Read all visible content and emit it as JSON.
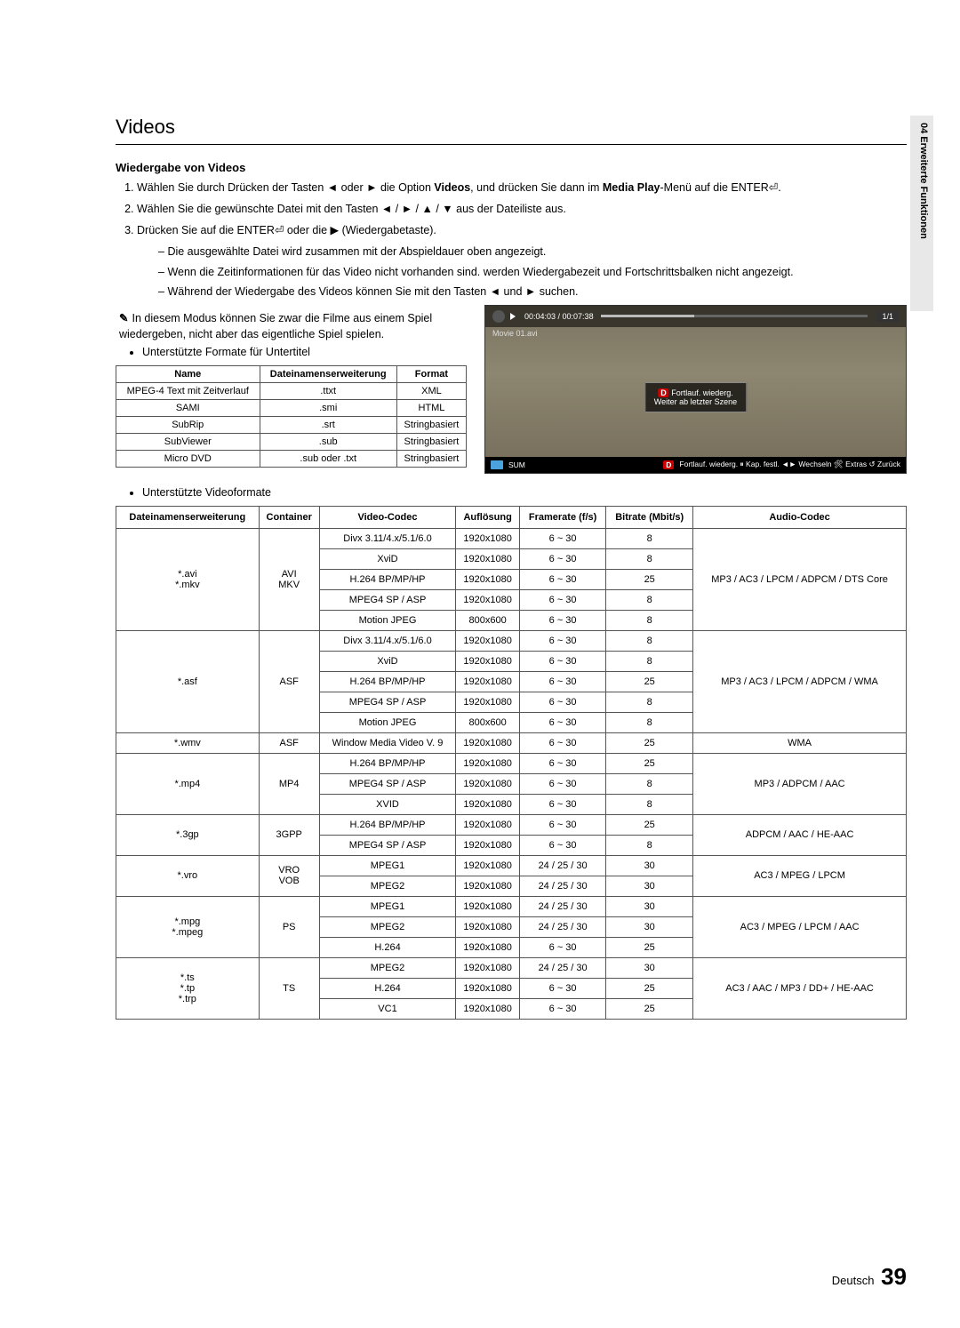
{
  "side_tab": "04  Erweiterte Funktionen",
  "section_title": "Videos",
  "subheading": "Wiedergabe von Videos",
  "steps": {
    "s1_pre": "Wählen Sie durch Drücken der Tasten ◄ oder ► die Option ",
    "s1_bold1": "Videos",
    "s1_mid": ", und drücken Sie dann im ",
    "s1_bold2": "Media Play",
    "s1_post": "-Menü auf die ENTER⏎.",
    "s2": "Wählen Sie die gewünschte Datei mit den Tasten ◄ / ► / ▲ / ▼ aus der Dateiliste aus.",
    "s3": "Drücken Sie auf die ENTER⏎ oder die ▶ (Wiedergabetaste).",
    "s3_sub1": "Die ausgewählte Datei wird zusammen mit der Abspieldauer oben angezeigt.",
    "s3_sub2": "Wenn die Zeitinformationen für das Video nicht vorhanden sind. werden Wiedergabezeit und Fortschrittsbalken nicht angezeigt.",
    "s3_sub3": "Während der Wiedergabe des Videos können Sie mit den Tasten ◄ und ► suchen."
  },
  "note": "In diesem Modus können Sie zwar die Filme aus einem Spiel wiedergeben, nicht aber das eigentliche Spiel spielen.",
  "bullet_subtitle": "Unterstützte Formate für Untertitel",
  "subtitle_table": {
    "headers": [
      "Name",
      "Dateinamenserweiterung",
      "Format"
    ],
    "rows": [
      [
        "MPEG-4 Text mit Zeitverlauf",
        ".ttxt",
        "XML"
      ],
      [
        "SAMI",
        ".smi",
        "HTML"
      ],
      [
        "SubRip",
        ".srt",
        "Stringbasiert"
      ],
      [
        "SubViewer",
        ".sub",
        "Stringbasiert"
      ],
      [
        "Micro DVD",
        ".sub oder .txt",
        "Stringbasiert"
      ]
    ]
  },
  "screenshot": {
    "time": "00:04:03 / 00:07:38",
    "count": "1/1",
    "file": "Movie 01.avi",
    "overlay_btn": "D",
    "overlay_l1": "Fortlauf. wiederg.",
    "overlay_l2": "Weiter ab letzter Szene",
    "sum": "SUM",
    "bottom_d": "D",
    "bottom_text": "Fortlauf. wiederg. ⏸ Kap. festl. ◄► Wechseln 🛠 Extras ↺ Zurück"
  },
  "bullet_videoformats": "Unterstützte Videoformate",
  "video_table": {
    "headers": [
      "Dateinamenserweiterung",
      "Container",
      "Video-Codec",
      "Auflösung",
      "Framerate (f/s)",
      "Bitrate (Mbit/s)",
      "Audio-Codec"
    ],
    "groups": [
      {
        "ext": "*.avi\n*.mkv",
        "container": "AVI\nMKV",
        "audio": "MP3 / AC3 / LPCM / ADPCM / DTS Core",
        "rows": [
          [
            "Divx 3.11/4.x/5.1/6.0",
            "1920x1080",
            "6 ~ 30",
            "8"
          ],
          [
            "XviD",
            "1920x1080",
            "6 ~ 30",
            "8"
          ],
          [
            "H.264 BP/MP/HP",
            "1920x1080",
            "6 ~ 30",
            "25"
          ],
          [
            "MPEG4 SP / ASP",
            "1920x1080",
            "6 ~ 30",
            "8"
          ],
          [
            "Motion JPEG",
            "800x600",
            "6 ~ 30",
            "8"
          ]
        ]
      },
      {
        "ext": "*.asf",
        "container": "ASF",
        "audio": "MP3 / AC3 / LPCM / ADPCM / WMA",
        "rows": [
          [
            "Divx 3.11/4.x/5.1/6.0",
            "1920x1080",
            "6 ~ 30",
            "8"
          ],
          [
            "XviD",
            "1920x1080",
            "6 ~ 30",
            "8"
          ],
          [
            "H.264 BP/MP/HP",
            "1920x1080",
            "6 ~ 30",
            "25"
          ],
          [
            "MPEG4 SP / ASP",
            "1920x1080",
            "6 ~ 30",
            "8"
          ],
          [
            "Motion JPEG",
            "800x600",
            "6 ~ 30",
            "8"
          ]
        ]
      },
      {
        "ext": "*.wmv",
        "container": "ASF",
        "audio": "WMA",
        "rows": [
          [
            "Window Media Video V. 9",
            "1920x1080",
            "6 ~ 30",
            "25"
          ]
        ]
      },
      {
        "ext": "*.mp4",
        "container": "MP4",
        "audio": "MP3 / ADPCM / AAC",
        "rows": [
          [
            "H.264 BP/MP/HP",
            "1920x1080",
            "6 ~ 30",
            "25"
          ],
          [
            "MPEG4 SP / ASP",
            "1920x1080",
            "6 ~ 30",
            "8"
          ],
          [
            "XVID",
            "1920x1080",
            "6 ~ 30",
            "8"
          ]
        ]
      },
      {
        "ext": "*.3gp",
        "container": "3GPP",
        "audio": "ADPCM / AAC / HE-AAC",
        "rows": [
          [
            "H.264 BP/MP/HP",
            "1920x1080",
            "6 ~ 30",
            "25"
          ],
          [
            "MPEG4 SP / ASP",
            "1920x1080",
            "6 ~ 30",
            "8"
          ]
        ]
      },
      {
        "ext": "*.vro",
        "container": "VRO\nVOB",
        "audio": "AC3 / MPEG / LPCM",
        "rows": [
          [
            "MPEG1",
            "1920x1080",
            "24 / 25 / 30",
            "30"
          ],
          [
            "MPEG2",
            "1920x1080",
            "24 / 25 / 30",
            "30"
          ]
        ]
      },
      {
        "ext": "*.mpg\n*.mpeg",
        "container": "PS",
        "audio": "AC3 / MPEG / LPCM / AAC",
        "rows": [
          [
            "MPEG1",
            "1920x1080",
            "24 / 25 / 30",
            "30"
          ],
          [
            "MPEG2",
            "1920x1080",
            "24 / 25 / 30",
            "30"
          ],
          [
            "H.264",
            "1920x1080",
            "6 ~ 30",
            "25"
          ]
        ]
      },
      {
        "ext": "*.ts\n*.tp\n*.trp",
        "container": "TS",
        "audio": "AC3 / AAC / MP3 / DD+ / HE-AAC",
        "rows": [
          [
            "MPEG2",
            "1920x1080",
            "24 / 25 / 30",
            "30"
          ],
          [
            "H.264",
            "1920x1080",
            "6 ~ 30",
            "25"
          ],
          [
            "VC1",
            "1920x1080",
            "6 ~ 30",
            "25"
          ]
        ]
      }
    ]
  },
  "footer_label": "Deutsch",
  "footer_page": "39"
}
